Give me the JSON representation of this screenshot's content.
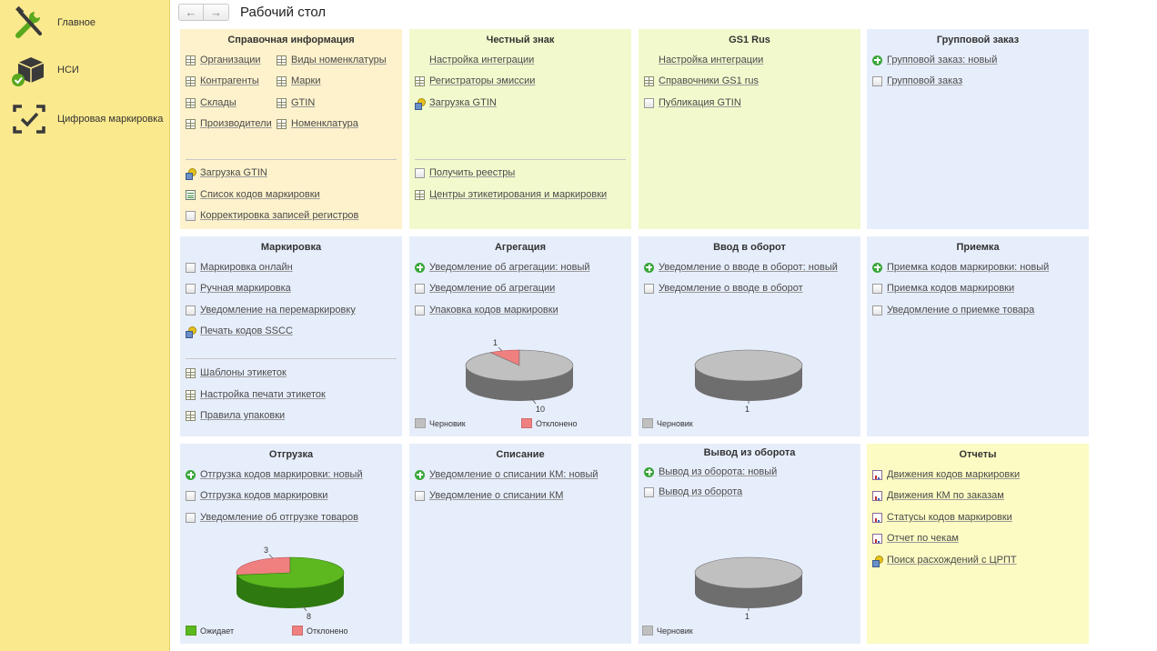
{
  "sidebar": {
    "items": [
      {
        "label": "Главное",
        "icon": "tools-icon"
      },
      {
        "label": "НСИ",
        "icon": "box-check-icon"
      },
      {
        "label": "Цифровая маркировка",
        "icon": "scan-check-icon"
      }
    ]
  },
  "header": {
    "back": "←",
    "forward": "→",
    "title": "Рабочий стол"
  },
  "colors": {
    "sidebar": "#fbe98e",
    "orange": "#fdf2cc",
    "green": "#f2f9cd",
    "blue": "#e7eefb",
    "yellow": "#fcfbc3",
    "pie_gray": "#c0c0c0",
    "pie_red": "#f08080",
    "pie_green": "#5cb81e"
  },
  "panels": {
    "spravochnaya": {
      "title": "Справочная информация",
      "links": [
        {
          "text": "Организации",
          "icon": "table-icon"
        },
        {
          "text": "Контрагенты",
          "icon": "table-icon"
        },
        {
          "text": "Склады",
          "icon": "table-icon"
        },
        {
          "text": "Производители",
          "icon": "table-icon"
        },
        {
          "text": "Виды номенклатуры",
          "icon": "table-icon"
        },
        {
          "text": "Марки",
          "icon": "table-icon"
        },
        {
          "text": "GTIN",
          "icon": "table-icon"
        },
        {
          "text": "Номенклатура",
          "icon": "table-icon"
        },
        {
          "text": "Загрузка GTIN",
          "icon": "load-icon"
        },
        {
          "text": "Список кодов маркировки",
          "icon": "list-icon"
        },
        {
          "text": "Корректировка записей регистров",
          "icon": "document-icon"
        }
      ]
    },
    "chestny": {
      "title": "Честный знак",
      "links": [
        {
          "text": "Настройка интеграции",
          "icon": ""
        },
        {
          "text": "Регистраторы эмиссии",
          "icon": "table-icon"
        },
        {
          "text": "Загрузка GTIN",
          "icon": "load-icon"
        },
        {
          "text": "Получить реестры",
          "icon": "document-icon"
        },
        {
          "text": "Центры этикетирования и маркировки",
          "icon": "table-icon"
        }
      ]
    },
    "gs1": {
      "title": "GS1 Rus",
      "links": [
        {
          "text": "Настройка интеграции",
          "icon": ""
        },
        {
          "text": "Справочники GS1 rus",
          "icon": "table-icon"
        },
        {
          "text": "Публикация GTIN",
          "icon": "document-icon"
        }
      ]
    },
    "group": {
      "title": "Групповой заказ",
      "links": [
        {
          "text": "Групповой заказ: новый",
          "icon": "add-icon"
        },
        {
          "text": "Групповой заказ",
          "icon": "document-icon"
        }
      ]
    },
    "marking": {
      "title": "Маркировка",
      "links": [
        {
          "text": "Маркировка онлайн",
          "icon": "document-icon"
        },
        {
          "text": "Ручная маркировка",
          "icon": "document-icon"
        },
        {
          "text": "Уведомление на перемаркировку",
          "icon": "document-icon"
        },
        {
          "text": "Печать кодов SSCC",
          "icon": "load-icon"
        },
        {
          "text": "Шаблоны этикеток",
          "icon": "table-icon"
        },
        {
          "text": "Настройка печати этикеток",
          "icon": "table-icon"
        },
        {
          "text": "Правила упаковки",
          "icon": "table-icon"
        }
      ]
    },
    "aggregation": {
      "title": "Агрегация",
      "links": [
        {
          "text": "Уведомление об агрегации: новый",
          "icon": "add-icon"
        },
        {
          "text": "Уведомление об агрегации",
          "icon": "document-icon"
        },
        {
          "text": "Упаковка кодов маркировки",
          "icon": "document-icon"
        }
      ]
    },
    "vvod": {
      "title": "Ввод в оборот",
      "links": [
        {
          "text": "Уведомление о вводе в оборот: новый",
          "icon": "add-icon"
        },
        {
          "text": "Уведомление о вводе в оборот",
          "icon": "document-icon"
        }
      ]
    },
    "priemka": {
      "title": "Приемка",
      "links": [
        {
          "text": "Приемка кодов маркировки: новый",
          "icon": "add-icon"
        },
        {
          "text": "Приемка кодов маркировки",
          "icon": "document-icon"
        },
        {
          "text": "Уведомление о приемке товара",
          "icon": "document-icon"
        }
      ]
    },
    "otgruzka": {
      "title": "Отгрузка",
      "links": [
        {
          "text": "Отгрузка кодов маркировки: новый",
          "icon": "add-icon"
        },
        {
          "text": "Отгрузка кодов маркировки",
          "icon": "document-icon"
        },
        {
          "text": "Уведомление об отгрузке товаров",
          "icon": "document-icon"
        }
      ]
    },
    "spisanie": {
      "title": "Списание",
      "links": [
        {
          "text": "Уведомление о списании КМ: новый",
          "icon": "add-icon"
        },
        {
          "text": "Уведомление о списании КМ",
          "icon": "document-icon"
        }
      ]
    },
    "vyvod": {
      "title": "Вывод из оборота",
      "links": [
        {
          "text": "Вывод из оборота: новый",
          "icon": "add-icon"
        },
        {
          "text": "Вывод из оборота",
          "icon": "document-icon"
        }
      ]
    },
    "reports": {
      "title": "Отчеты",
      "links": [
        {
          "text": "Движения кодов маркировки",
          "icon": "report-icon"
        },
        {
          "text": "Движения КМ по заказам",
          "icon": "report-icon"
        },
        {
          "text": "Статусы кодов маркировки",
          "icon": "report-icon"
        },
        {
          "text": "Отчет по чекам",
          "icon": "report-icon"
        },
        {
          "text": "Поиск расхождений с ЦРПТ",
          "icon": "load-icon"
        }
      ]
    }
  },
  "chart_data": [
    {
      "type": "pie",
      "title": "Агрегация",
      "categories": [
        "Черновик",
        "Отклонено"
      ],
      "values": [
        10,
        1
      ],
      "data_labels": [
        "10",
        "1"
      ],
      "legend": "bottom"
    },
    {
      "type": "pie",
      "title": "Ввод в оборот",
      "categories": [
        "Черновик"
      ],
      "values": [
        1
      ],
      "data_labels": [
        "1"
      ],
      "legend": "bottom"
    },
    {
      "type": "pie",
      "title": "Отгрузка",
      "categories": [
        "Ожидает",
        "Отклонено"
      ],
      "values": [
        8,
        3
      ],
      "data_labels": [
        "8",
        "3"
      ],
      "legend": "bottom"
    },
    {
      "type": "pie",
      "title": "Вывод из оборота",
      "categories": [
        "Черновик"
      ],
      "values": [
        1
      ],
      "data_labels": [
        "1"
      ],
      "legend": "bottom"
    }
  ]
}
